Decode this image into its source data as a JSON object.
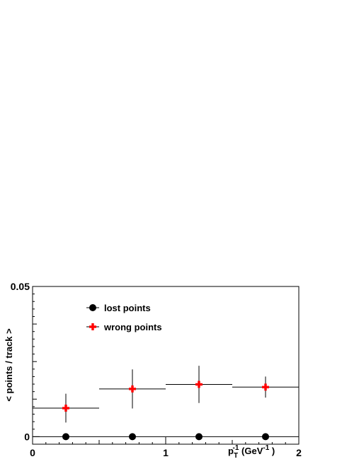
{
  "chart_data": {
    "type": "scatter",
    "xlabel": "p_T^-1 (GeV^-1)",
    "ylabel": "< points / track >",
    "xlim": [
      0,
      2
    ],
    "ylim": [
      -0.0025,
      0.05
    ],
    "x_ticks": [
      "0",
      "1",
      "2"
    ],
    "y_ticks": [
      "0",
      "0.05"
    ],
    "grid": false,
    "legend_position": "top-left",
    "series": [
      {
        "name": "lost points",
        "marker": "circle",
        "color": "#000000",
        "points": [
          {
            "x": 0.25,
            "xerr": 0.25,
            "y": 0.0,
            "yerr": 0.0
          },
          {
            "x": 0.75,
            "xerr": 0.25,
            "y": 0.0,
            "yerr": 0.0
          },
          {
            "x": 1.25,
            "xerr": 0.25,
            "y": 0.0,
            "yerr": 0.0
          },
          {
            "x": 1.75,
            "xerr": 0.25,
            "y": 0.0,
            "yerr": 0.0
          }
        ]
      },
      {
        "name": "wrong points",
        "marker": "cross",
        "color": "#ff0000",
        "points": [
          {
            "x": 0.25,
            "xerr": 0.25,
            "y": 0.0095,
            "yerr": 0.0048
          },
          {
            "x": 0.75,
            "xerr": 0.25,
            "y": 0.0159,
            "yerr": 0.0065
          },
          {
            "x": 1.25,
            "xerr": 0.25,
            "y": 0.0174,
            "yerr": 0.0062
          },
          {
            "x": 1.75,
            "xerr": 0.25,
            "y": 0.0165,
            "yerr": 0.0035
          }
        ]
      }
    ]
  }
}
